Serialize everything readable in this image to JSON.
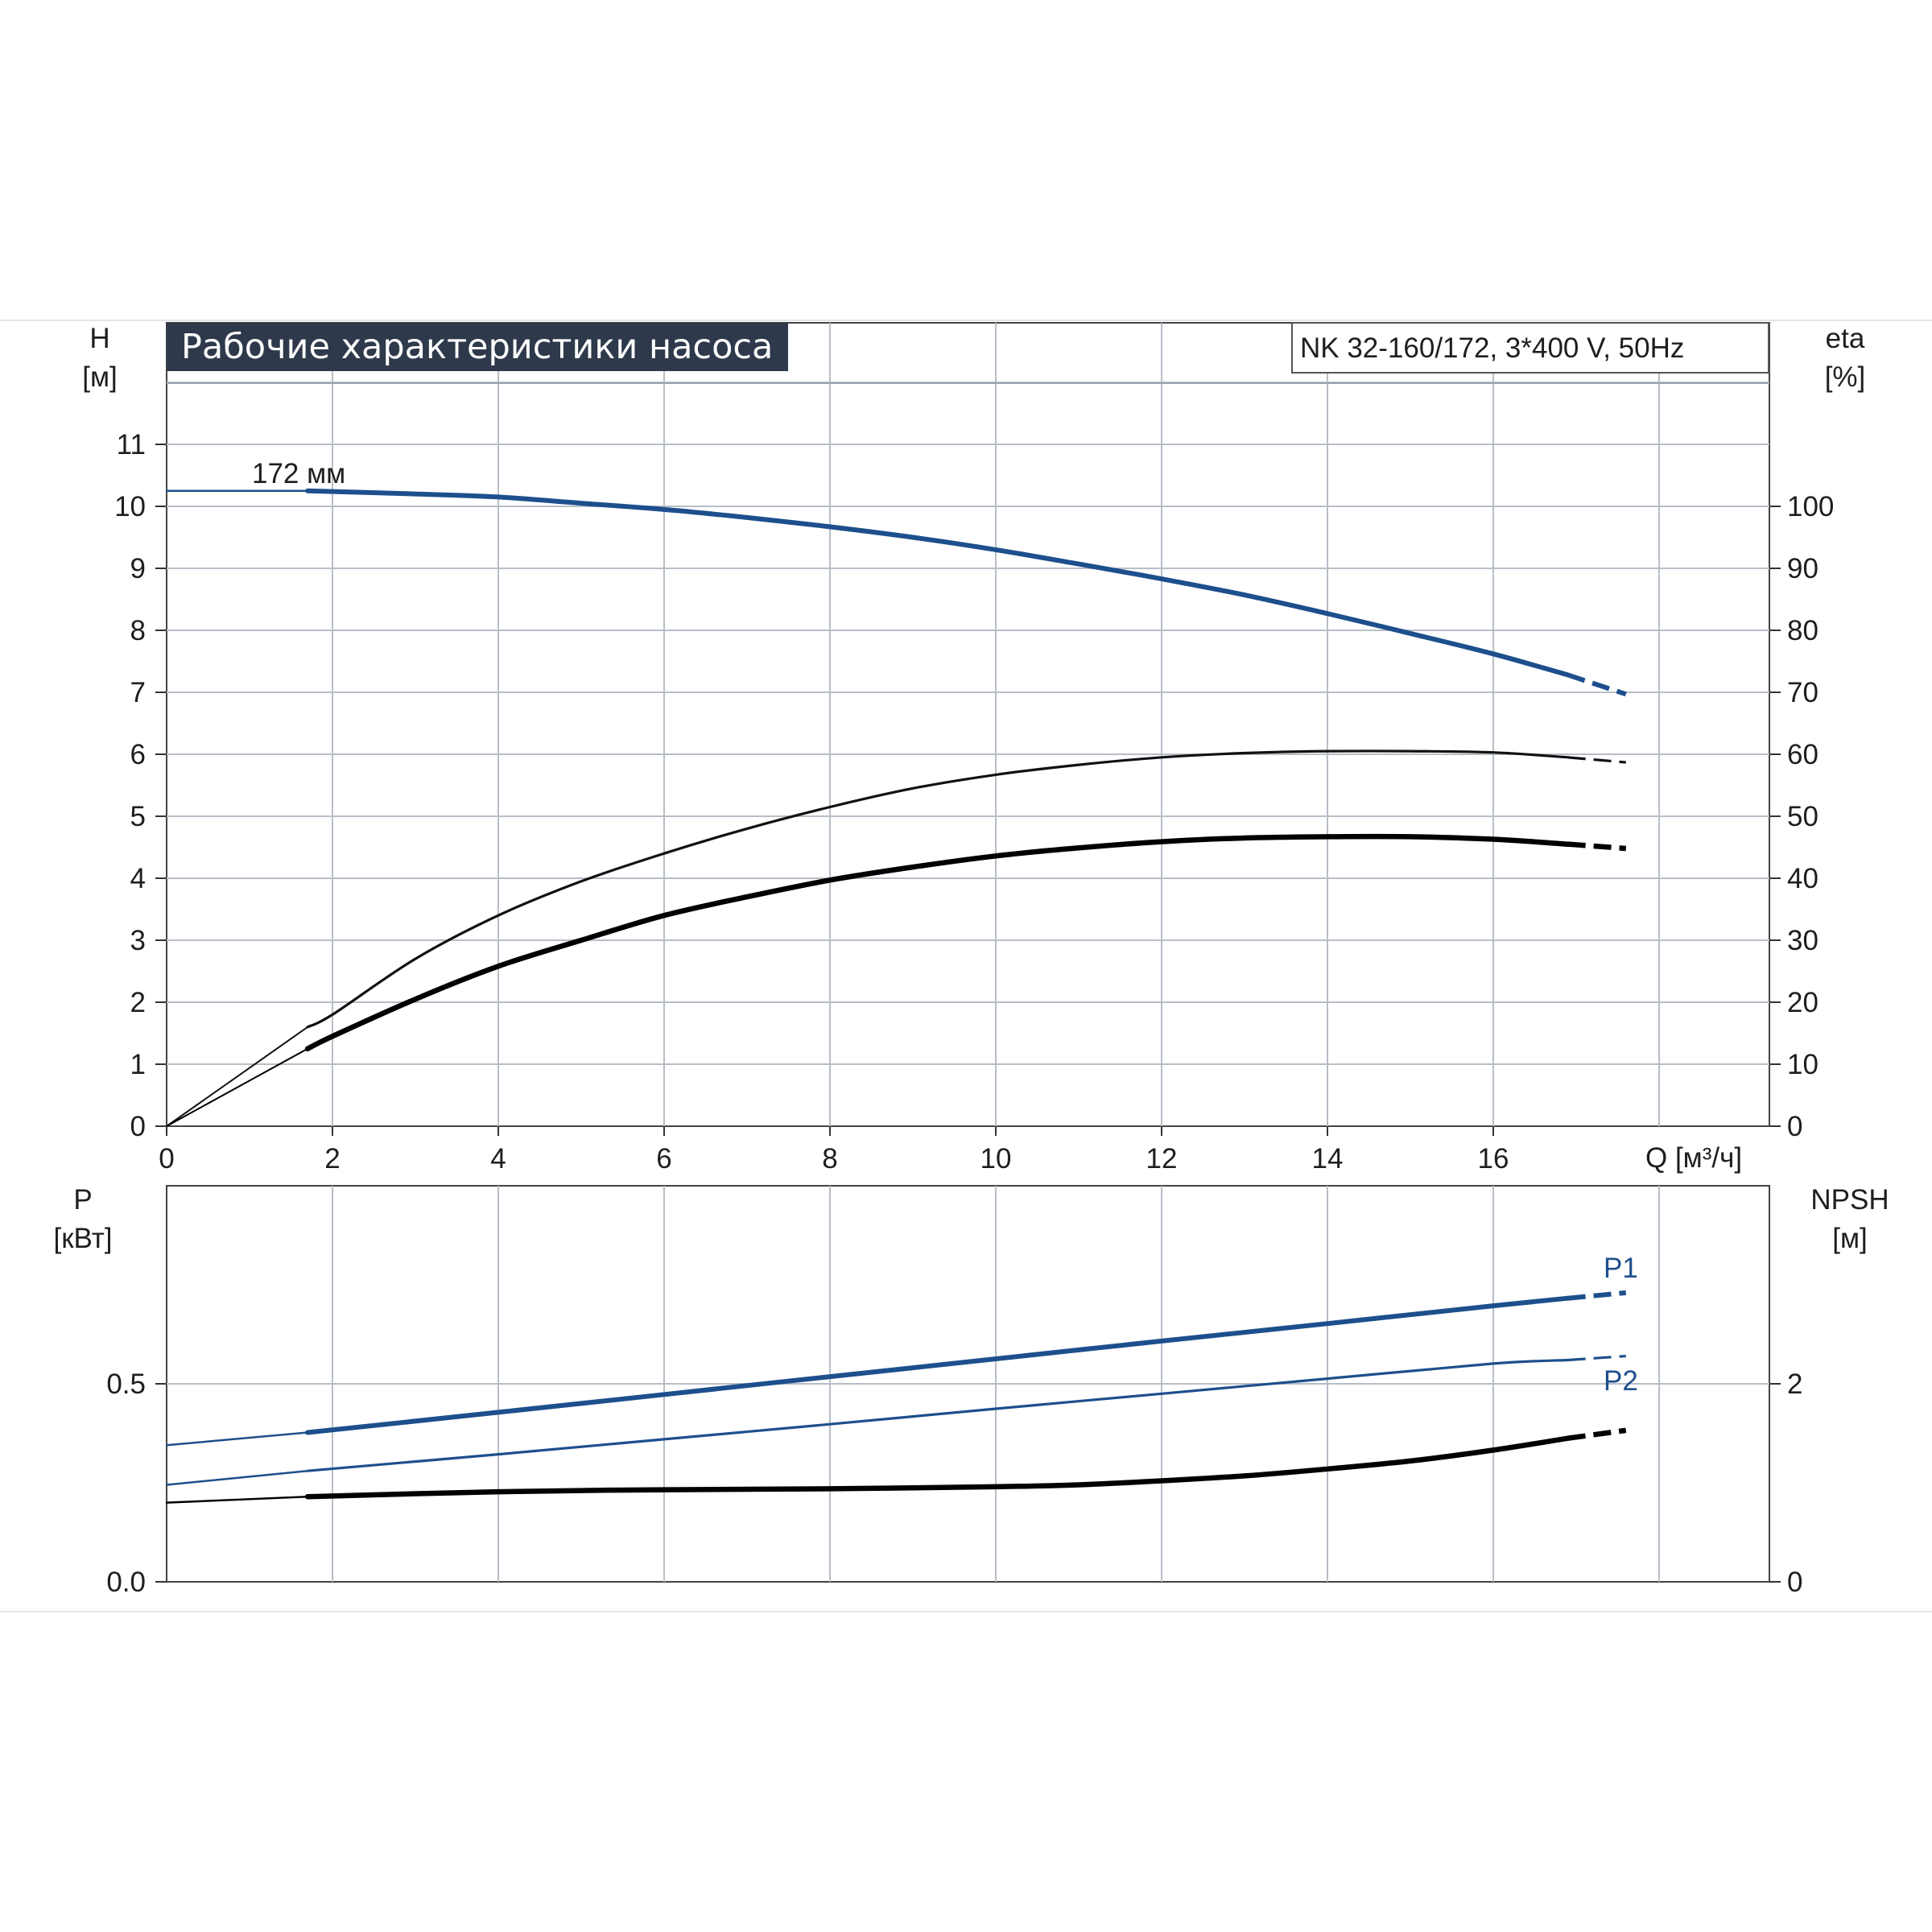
{
  "chart_data": [
    {
      "type": "line",
      "panel": "top",
      "title": "Рабочие характеристики насоса",
      "subtitle": "NK 32-160/172, 3*400 V, 50Hz",
      "xlabel": "Q [м³/ч]",
      "xlim": [
        0,
        19.4
      ],
      "xticks": [
        0,
        2,
        4,
        6,
        8,
        10,
        12,
        14,
        16
      ],
      "ylabel_left": [
        "H",
        "[м]"
      ],
      "ylim_left": [
        0,
        13
      ],
      "yticks_left": [
        0,
        1,
        2,
        3,
        4,
        5,
        6,
        7,
        8,
        9,
        10,
        11
      ],
      "ylabel_right": [
        "eta",
        "[%]"
      ],
      "ylim_right": [
        0,
        130
      ],
      "yticks_right": [
        0,
        10,
        20,
        30,
        40,
        50,
        60,
        70,
        80,
        90,
        100
      ],
      "grid": true,
      "annotations": [
        {
          "text": "172 мм",
          "x": 1.7,
          "y": 10.55
        }
      ],
      "series": [
        {
          "axis": "left",
          "color": "#1d4f8c",
          "x": [
            0,
            1.7,
            3,
            4,
            5,
            6,
            7,
            8,
            9,
            10,
            11,
            12,
            13,
            14,
            15,
            16,
            16.9
          ],
          "y": [
            10.25,
            10.25,
            10.2,
            10.15,
            10.05,
            9.95,
            9.82,
            9.67,
            9.5,
            9.3,
            9.07,
            8.83,
            8.57,
            8.27,
            7.95,
            7.62,
            7.28
          ],
          "extension_x": [
            16.9,
            17.6
          ],
          "extension_y": [
            7.28,
            6.97
          ]
        },
        {
          "axis": "right",
          "color": "#111111",
          "x": [
            0,
            1.7,
            2,
            3,
            4,
            5,
            6,
            7,
            8,
            9,
            10,
            11,
            12,
            13,
            14,
            15,
            16,
            16.9
          ],
          "y": [
            0,
            16,
            18,
            27,
            34,
            39.5,
            44,
            48,
            51.5,
            54.5,
            56.7,
            58.3,
            59.5,
            60.2,
            60.5,
            60.5,
            60.3,
            59.5
          ],
          "extension_x": [
            16.9,
            17.6
          ],
          "extension_y": [
            59.5,
            58.7
          ]
        },
        {
          "axis": "right",
          "color": "#000000",
          "x": [
            0,
            1.7,
            2,
            3,
            4,
            5,
            6,
            7,
            8,
            9,
            10,
            11,
            12,
            13,
            14,
            15,
            16,
            16.9
          ],
          "y": [
            0,
            12.5,
            14.5,
            20.5,
            25.8,
            30,
            34,
            37,
            39.7,
            41.8,
            43.6,
            44.9,
            45.9,
            46.5,
            46.7,
            46.7,
            46.3,
            45.5
          ],
          "extension_x": [
            16.9,
            17.6
          ],
          "extension_y": [
            45.5,
            44.8
          ]
        }
      ]
    },
    {
      "type": "line",
      "panel": "bottom",
      "xlim": [
        0,
        19.4
      ],
      "ylabel_left": [
        "P",
        "[кВт]"
      ],
      "ylim_left": [
        0,
        0.75
      ],
      "yticks_left": [
        0.0,
        0.5
      ],
      "yticklabels_left": [
        "0.0",
        "0.5"
      ],
      "ylabel_right": [
        "NPSH",
        "[м]"
      ],
      "ylim_right": [
        0,
        3.1
      ],
      "yticks_right": [
        0,
        2
      ],
      "grid": true,
      "series": [
        {
          "name": "P1",
          "axis": "left",
          "color": "#1d4f8c",
          "x": [
            0,
            1.7,
            4,
            6,
            8,
            10,
            12,
            14,
            16,
            16.9
          ],
          "y": [
            0.345,
            0.377,
            0.428,
            0.473,
            0.518,
            0.563,
            0.608,
            0.652,
            0.697,
            0.716
          ],
          "extension_x": [
            16.9,
            17.6
          ],
          "extension_y": [
            0.716,
            0.73
          ]
        },
        {
          "name": "P2",
          "axis": "left",
          "color": "#1d4f8c",
          "x": [
            0,
            1.7,
            4,
            6,
            8,
            10,
            12,
            14,
            16,
            16.9
          ],
          "y": [
            0.245,
            0.28,
            0.322,
            0.36,
            0.398,
            0.437,
            0.475,
            0.513,
            0.551,
            0.56
          ],
          "extension_x": [
            16.9,
            17.6
          ],
          "extension_y": [
            0.56,
            0.57
          ]
        },
        {
          "axis": "right",
          "color": "#000000",
          "x": [
            0,
            1.7,
            4,
            6,
            8,
            10,
            11,
            12,
            13,
            14,
            15,
            16,
            16.9
          ],
          "y": [
            0.8,
            0.86,
            0.91,
            0.93,
            0.94,
            0.96,
            0.98,
            1.02,
            1.07,
            1.14,
            1.22,
            1.33,
            1.45
          ],
          "extension_x": [
            16.9,
            17.6
          ],
          "extension_y": [
            1.45,
            1.53
          ]
        }
      ]
    }
  ]
}
